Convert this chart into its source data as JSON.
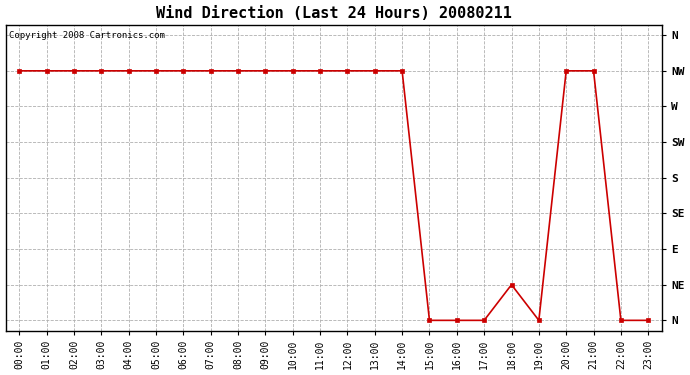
{
  "title": "Wind Direction (Last 24 Hours) 20080211",
  "copyright": "Copyright 2008 Cartronics.com",
  "line_color": "#cc0000",
  "marker_color": "#cc0000",
  "bg_color": "#ffffff",
  "plot_bg_color": "#ffffff",
  "grid_color": "#b0b0b0",
  "y_labels": [
    "N",
    "NW",
    "W",
    "SW",
    "S",
    "SE",
    "E",
    "NE",
    "N"
  ],
  "y_positions": [
    8,
    7,
    6,
    5,
    4,
    3,
    2,
    1,
    0
  ],
  "data_points": [
    [
      0,
      7
    ],
    [
      1,
      7
    ],
    [
      2,
      7
    ],
    [
      3,
      7
    ],
    [
      4,
      7
    ],
    [
      5,
      7
    ],
    [
      6,
      7
    ],
    [
      7,
      7
    ],
    [
      8,
      7
    ],
    [
      9,
      7
    ],
    [
      10,
      7
    ],
    [
      11,
      7
    ],
    [
      12,
      7
    ],
    [
      13,
      7
    ],
    [
      14,
      7
    ],
    [
      15,
      0
    ],
    [
      16,
      0
    ],
    [
      17,
      0
    ],
    [
      18,
      1
    ],
    [
      19,
      0
    ],
    [
      20,
      7
    ],
    [
      21,
      7
    ],
    [
      22,
      0
    ],
    [
      23,
      0
    ]
  ],
  "title_fontsize": 11,
  "label_fontsize": 8,
  "tick_fontsize": 7,
  "copyright_fontsize": 6.5
}
